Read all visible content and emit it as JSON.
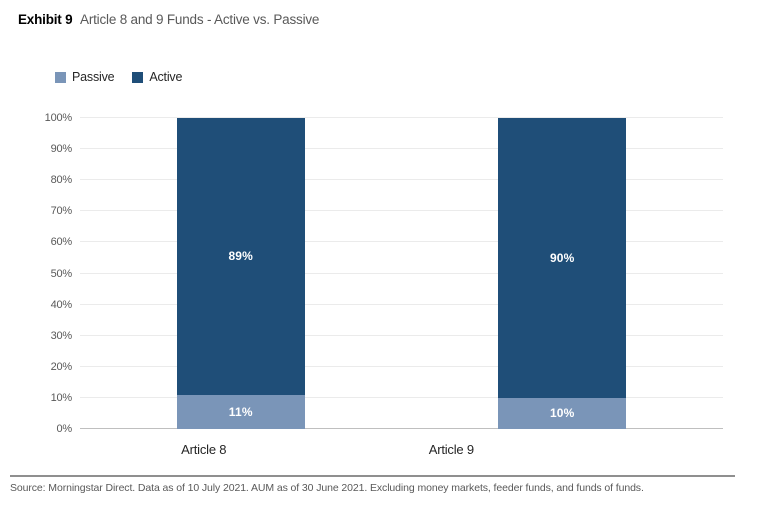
{
  "header": {
    "exhibit_label": "Exhibit 9",
    "title": "Article 8 and 9 Funds - Active vs. Passive"
  },
  "legend": [
    {
      "label": "Passive",
      "color": "#7A95B8"
    },
    {
      "label": "Active",
      "color": "#1F4E78"
    }
  ],
  "chart_data": {
    "type": "bar",
    "stacked": true,
    "title": "Exhibit 9 Article 8 and 9 Funds - Active vs. Passive",
    "categories": [
      "Article 8",
      "Article 9"
    ],
    "series": [
      {
        "name": "Passive",
        "color": "#7A95B8",
        "values": [
          11,
          10
        ],
        "data_labels": [
          "11%",
          "10%"
        ]
      },
      {
        "name": "Active",
        "color": "#1F4E78",
        "values": [
          89,
          90
        ],
        "data_labels": [
          "89%",
          "90%"
        ]
      }
    ],
    "xlabel": "",
    "ylabel": "",
    "ylim": [
      0,
      100
    ],
    "ytick_step": 10,
    "ytick_labels": [
      "0%",
      "10%",
      "20%",
      "30%",
      "40%",
      "50%",
      "60%",
      "70%",
      "80%",
      "90%",
      "100%"
    ],
    "grid": true,
    "legend_position": "top-left"
  },
  "footer": {
    "source": "Source: Morningstar Direct. Data as of 10 July 2021. AUM as of 30 June 2021. Excluding money markets, feeder funds, and funds of funds."
  }
}
